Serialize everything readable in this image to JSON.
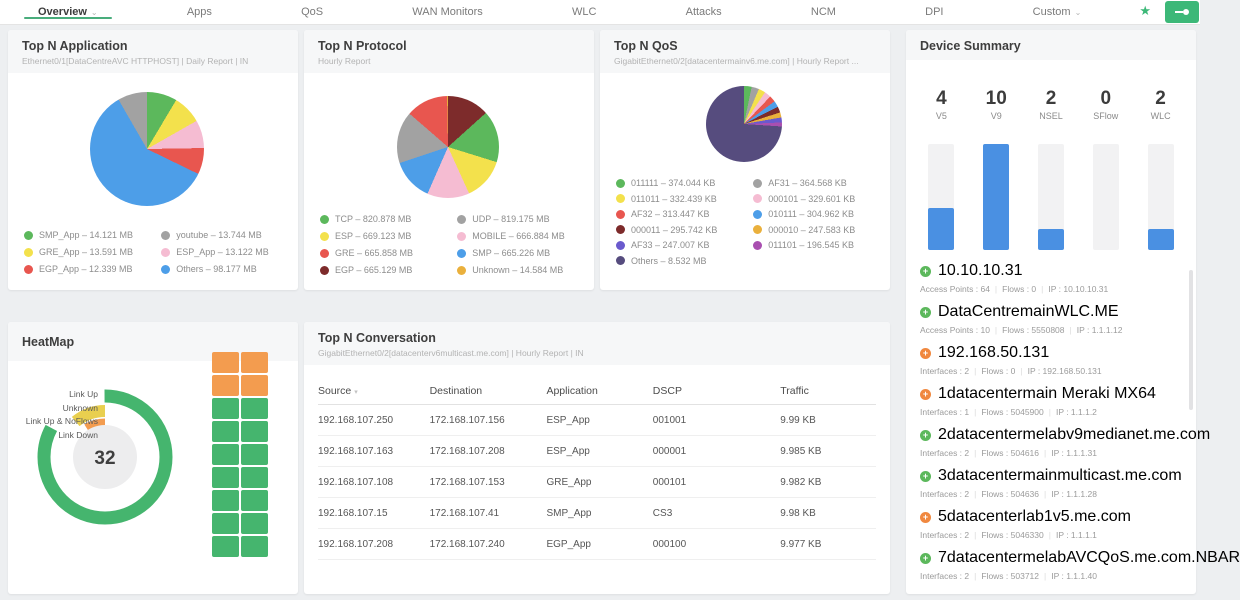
{
  "app": {
    "accent_green": "#3cb878",
    "status_colors": {
      "green": "#5cb85c",
      "orange": "#f0883f"
    }
  },
  "nav": {
    "chevron_glyph": "⌄",
    "star_glyph": "★",
    "tabs": [
      {
        "label": "Overview",
        "active": true,
        "has_chevron": true
      },
      {
        "label": "Apps"
      },
      {
        "label": "QoS"
      },
      {
        "label": "WAN Monitors"
      },
      {
        "label": "WLC"
      },
      {
        "label": "Attacks"
      },
      {
        "label": "NCM"
      },
      {
        "label": "DPI"
      },
      {
        "label": "Custom",
        "has_chevron": true
      }
    ]
  },
  "panels": {
    "application": {
      "title": "Top N Application",
      "subtitle": "Ethernet0/1[DataCentreAVC HTTPHOST] | Daily Report | IN"
    },
    "protocol": {
      "title": "Top N Protocol",
      "subtitle": "Hourly Report"
    },
    "qos": {
      "title": "Top N QoS",
      "subtitle": "GigabitEthernet0/2[datacentermainv6.me.com] | Hourly Report ..."
    },
    "device_summary": {
      "title": "Device Summary"
    },
    "heatmap": {
      "title": "HeatMap"
    },
    "conversation": {
      "title": "Top N Conversation",
      "subtitle": "GigabitEthernet0/2[datacenterv6multicast.me.com] | Hourly Report | IN"
    }
  },
  "device_summary": {
    "status_glyph": "+",
    "separator": "|",
    "devices": [
      {
        "name": "10.10.10.31",
        "status": "green",
        "stats": [
          "Access Points : 64",
          "Flows : 0",
          "IP : 10.10.10.31"
        ]
      },
      {
        "name": "DataCentremainWLC.ME",
        "status": "green",
        "stats": [
          "Access Points : 10",
          "Flows : 5550808",
          "IP : 1.1.1.12"
        ]
      },
      {
        "name": "192.168.50.131",
        "status": "orange",
        "stats": [
          "Interfaces : 2",
          "Flows : 0",
          "IP : 192.168.50.131"
        ]
      },
      {
        "name": "1datacentermain Meraki MX64",
        "status": "orange",
        "stats": [
          "Interfaces : 1",
          "Flows : 5045900",
          "IP : 1.1.1.2"
        ]
      },
      {
        "name": "2datacentermelabv9medianet.me.com",
        "status": "green",
        "stats": [
          "Interfaces : 2",
          "Flows : 504616",
          "IP : 1.1.1.31"
        ]
      },
      {
        "name": "3datacentermainmulticast.me.com",
        "status": "green",
        "stats": [
          "Interfaces : 2",
          "Flows : 504636",
          "IP : 1.1.1.28"
        ]
      },
      {
        "name": "5datacenterlab1v5.me.com",
        "status": "orange",
        "stats": [
          "Interfaces : 2",
          "Flows : 5046330",
          "IP : 1.1.1.1"
        ]
      },
      {
        "name": "7datacentermelabAVCQoS.me.com.NBAR",
        "status": "green",
        "stats": [
          "Interfaces : 2",
          "Flows : 503712",
          "IP : 1.1.1.40"
        ]
      }
    ]
  },
  "chart_data": [
    {
      "id": "top-n-application",
      "type": "pie",
      "title": "Top N Application",
      "unit": "MB",
      "legend_position": "bottom",
      "pie_order": [
        0,
        2,
        3,
        4,
        5,
        1
      ],
      "slices": [
        {
          "label": "SMP_App",
          "value": 14.121,
          "legend": "SMP_App – 14.121 MB",
          "color": "#5cb85c"
        },
        {
          "label": "youtube",
          "value": 13.744,
          "legend": "youtube – 13.744 MB",
          "color": "#a2a2a2"
        },
        {
          "label": "GRE_App",
          "value": 13.591,
          "legend": "GRE_App – 13.591 MB",
          "color": "#f3e14c"
        },
        {
          "label": "ESP_App",
          "value": 13.122,
          "legend": "ESP_App – 13.122 MB",
          "color": "#f5bcd2"
        },
        {
          "label": "EGP_App",
          "value": 12.339,
          "legend": "EGP_App – 12.339 MB",
          "color": "#e8564f"
        },
        {
          "label": "Others",
          "value": 98.177,
          "legend": "Others – 98.177 MB",
          "color": "#4d9ee8"
        }
      ]
    },
    {
      "id": "top-n-protocol",
      "type": "pie",
      "title": "Top N Protocol",
      "unit": "MB",
      "legend_position": "bottom",
      "pie_order": [
        6,
        0,
        2,
        3,
        5,
        1,
        4,
        7
      ],
      "slices": [
        {
          "label": "TCP",
          "value": 820.878,
          "legend": "TCP – 820.878 MB",
          "color": "#5cb85c"
        },
        {
          "label": "UDP",
          "value": 819.175,
          "legend": "UDP – 819.175 MB",
          "color": "#a2a2a2"
        },
        {
          "label": "ESP",
          "value": 669.123,
          "legend": "ESP – 669.123 MB",
          "color": "#f3e14c"
        },
        {
          "label": "MOBILE",
          "value": 666.884,
          "legend": "MOBILE – 666.884 MB",
          "color": "#f5bcd2"
        },
        {
          "label": "GRE",
          "value": 665.858,
          "legend": "GRE – 665.858 MB",
          "color": "#e8564f"
        },
        {
          "label": "SMP",
          "value": 665.226,
          "legend": "SMP – 665.226 MB",
          "color": "#4d9ee8"
        },
        {
          "label": "EGP",
          "value": 665.129,
          "legend": "EGP – 665.129 MB",
          "color": "#7d2b2b"
        },
        {
          "label": "Unknown",
          "value": 14.584,
          "legend": "Unknown – 14.584 MB",
          "color": "#eab03c"
        }
      ]
    },
    {
      "id": "top-n-qos",
      "type": "pie",
      "title": "Top N QoS",
      "unit": "KB",
      "legend_position": "bottom",
      "pie_order": [
        0,
        1,
        2,
        3,
        4,
        5,
        6,
        7,
        8,
        9,
        10
      ],
      "slices": [
        {
          "label": "011111",
          "value": 374.044,
          "legend": "011111 – 374.044 KB",
          "color": "#5cb85c"
        },
        {
          "label": "AF31",
          "value": 364.568,
          "legend": "AF31 – 364.568 KB",
          "color": "#a2a2a2"
        },
        {
          "label": "011011",
          "value": 332.439,
          "legend": "011011 – 332.439 KB",
          "color": "#f3e14c"
        },
        {
          "label": "000101",
          "value": 329.601,
          "legend": "000101 – 329.601 KB",
          "color": "#f5bcd2"
        },
        {
          "label": "AF32",
          "value": 313.447,
          "legend": "AF32 – 313.447 KB",
          "color": "#e8564f"
        },
        {
          "label": "010111",
          "value": 304.962,
          "legend": "010111 – 304.962 KB",
          "color": "#4d9ee8"
        },
        {
          "label": "000011",
          "value": 295.742,
          "legend": "000011 – 295.742 KB",
          "color": "#7d2b2b"
        },
        {
          "label": "000010",
          "value": 247.583,
          "legend": "000010 – 247.583 KB",
          "color": "#eab03c"
        },
        {
          "label": "AF33",
          "value": 247.007,
          "legend": "AF33 – 247.007 KB",
          "color": "#6a5acd"
        },
        {
          "label": "011101",
          "value": 196.545,
          "legend": "011101 – 196.545 KB",
          "color": "#a94fb0"
        },
        {
          "label": "Others",
          "value": 8532,
          "legend": "Others – 8.532 MB",
          "color": "#564c7e"
        }
      ]
    },
    {
      "id": "device-summary-bars",
      "type": "bar",
      "title": "Device Summary",
      "categories": [
        "V5",
        "V9",
        "NSEL",
        "SFlow",
        "WLC"
      ],
      "values": [
        4,
        10,
        2,
        0,
        2
      ],
      "ylim": [
        0,
        10
      ],
      "bar_color": "#4a90e2",
      "track_color": "#f2f2f3"
    },
    {
      "id": "heatmap-status-radial",
      "type": "radial",
      "center_total": "32",
      "segments": [
        {
          "label": "Link Up",
          "sweep_pct": 83,
          "color": "#45b56e",
          "direction": "cw"
        },
        {
          "label": "Unknown",
          "sweep_pct": 11,
          "color": "#e9cf4f",
          "direction": "ccw"
        },
        {
          "label": "Link Up & NoFlows",
          "sweep_pct": 9,
          "color": "#f39c4f",
          "direction": "ccw"
        },
        {
          "label": "Link Down",
          "sweep_pct": 0,
          "color": "#e05c5c",
          "direction": "cw"
        }
      ]
    },
    {
      "id": "heatmap-grid",
      "type": "heatmap",
      "cols": 2,
      "palette": {
        "orange": "#f39c4f",
        "green": "#45b56e"
      },
      "cells": [
        "orange",
        "orange",
        "orange",
        "orange",
        "green",
        "green",
        "green",
        "green",
        "green",
        "green",
        "green",
        "green",
        "green",
        "green",
        "green",
        "green",
        "green",
        "green"
      ]
    },
    {
      "id": "top-n-conversation",
      "type": "table",
      "sort_icon": "▾",
      "sorted_column": "Source",
      "columns": [
        "Source",
        "Destination",
        "Application",
        "DSCP",
        "Traffic"
      ],
      "col_widths_pct": [
        20,
        21,
        19,
        23,
        17
      ],
      "rows": [
        [
          "192.168.107.250",
          "172.168.107.156",
          "ESP_App",
          "001001",
          "9.99 KB"
        ],
        [
          "192.168.107.163",
          "172.168.107.208",
          "ESP_App",
          "000001",
          "9.985 KB"
        ],
        [
          "192.168.107.108",
          "172.168.107.153",
          "GRE_App",
          "000101",
          "9.982 KB"
        ],
        [
          "192.168.107.15",
          "172.168.107.41",
          "SMP_App",
          "CS3",
          "9.98 KB"
        ],
        [
          "192.168.107.208",
          "172.168.107.240",
          "EGP_App",
          "000100",
          "9.977 KB"
        ]
      ]
    }
  ]
}
